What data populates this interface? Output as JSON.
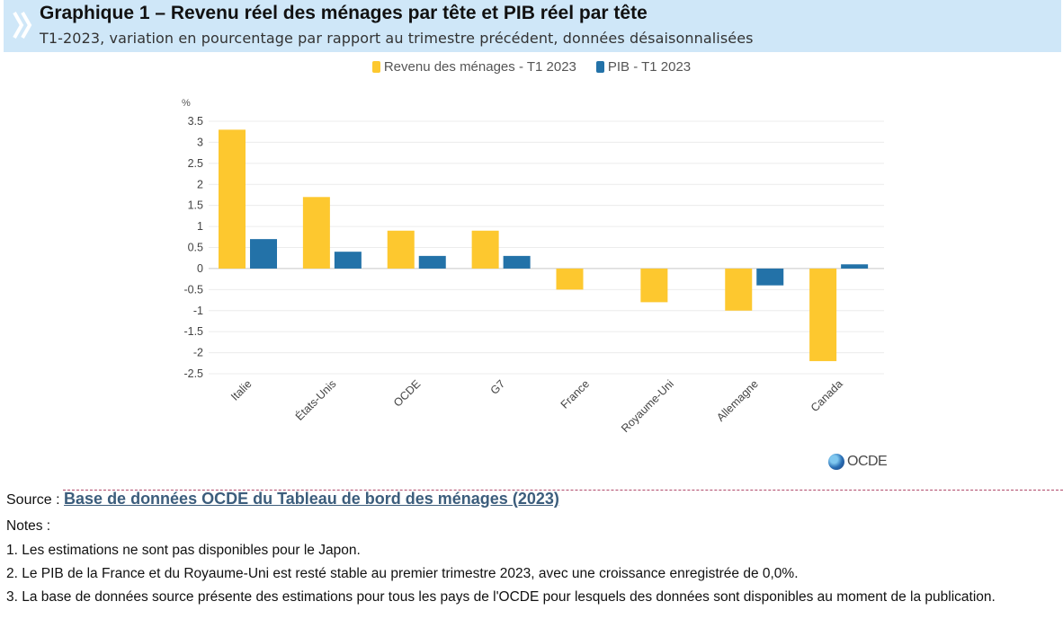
{
  "header": {
    "title": "Graphique 1 – Revenu réel des ménages par tête et PIB réel par tête",
    "subtitle": "T1-2023, variation en pourcentage par rapport au trimestre précédent, données désaisonnalisées"
  },
  "legend": {
    "items": [
      {
        "label": "Revenu des ménages - T1 2023",
        "color": "#fdc82f"
      },
      {
        "label": "PIB - T1 2023",
        "color": "#2372a8"
      }
    ]
  },
  "chart_data": {
    "type": "bar",
    "title": "Graphique 1 – Revenu réel des ménages par tête et PIB réel par tête",
    "subtitle": "T1-2023, variation en pourcentage par rapport au trimestre précédent, données désaisonnalisées",
    "ylabel": "%",
    "xlabel": "",
    "categories": [
      "Italie",
      "États-Unis",
      "OCDE",
      "G7",
      "France",
      "Royaume-Uni",
      "Allemagne",
      "Canada"
    ],
    "series": [
      {
        "name": "Revenu des ménages - T1 2023",
        "color": "#fdc82f",
        "values": [
          3.3,
          1.7,
          0.9,
          0.9,
          -0.5,
          -0.8,
          -1.0,
          -2.2
        ]
      },
      {
        "name": "PIB - T1 2023",
        "color": "#2372a8",
        "values": [
          0.7,
          0.4,
          0.3,
          0.3,
          0.0,
          0.0,
          -0.4,
          0.1
        ]
      }
    ],
    "ylim": [
      -2.5,
      3.5
    ],
    "yticks": [
      "3.5",
      "3",
      "2.5",
      "2",
      "1.5",
      "1",
      "0.5",
      "0",
      "-0.5",
      "-1",
      "-1.5",
      "-2",
      "-2.5"
    ],
    "grid": true,
    "legend_position": "top-center"
  },
  "logo": {
    "text": "OCDE"
  },
  "source": {
    "label": "Source : ",
    "link_text": "Base de données OCDE du Tableau de bord des ménages (2023)"
  },
  "notes": {
    "heading": "Notes :",
    "items": [
      "1. Les estimations ne sont pas disponibles pour le Japon.",
      "2. Le PIB de la France et du Royaume-Uni est resté stable au premier trimestre 2023, avec une croissance enregistrée de 0,0%.",
      "3. La base de données source présente des estimations pour tous les pays de l'OCDE pour lesquels des données sont disponibles au moment de la publication."
    ]
  }
}
